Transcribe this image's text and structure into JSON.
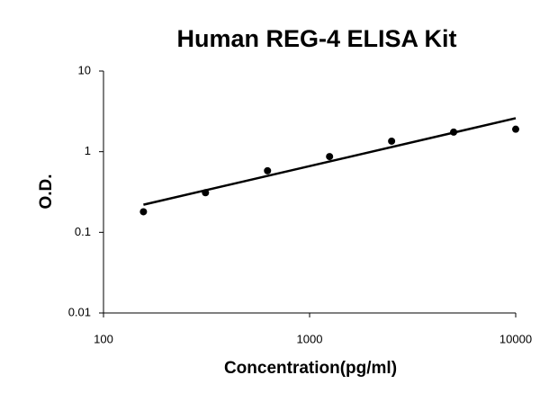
{
  "chart_data": {
    "type": "scatter",
    "title": "Human REG-4 ELISA Kit",
    "xlabel": "Concentration(pg/ml)",
    "ylabel": "O.D.",
    "x": [
      156.25,
      312.5,
      625,
      1250,
      2500,
      5000,
      10000
    ],
    "values": [
      0.18,
      0.31,
      0.58,
      0.87,
      1.35,
      1.75,
      1.9
    ],
    "color": "#000000",
    "fit": {
      "x": [
        156.25,
        10000
      ],
      "values": [
        0.22,
        2.6
      ]
    },
    "xscale": "log",
    "yscale": "log",
    "xlim": [
      100,
      10000
    ],
    "ylim": [
      0.01,
      10
    ],
    "xticks": [
      100,
      1000,
      10000
    ],
    "yticks": [
      0.01,
      0.1,
      1,
      10
    ]
  }
}
